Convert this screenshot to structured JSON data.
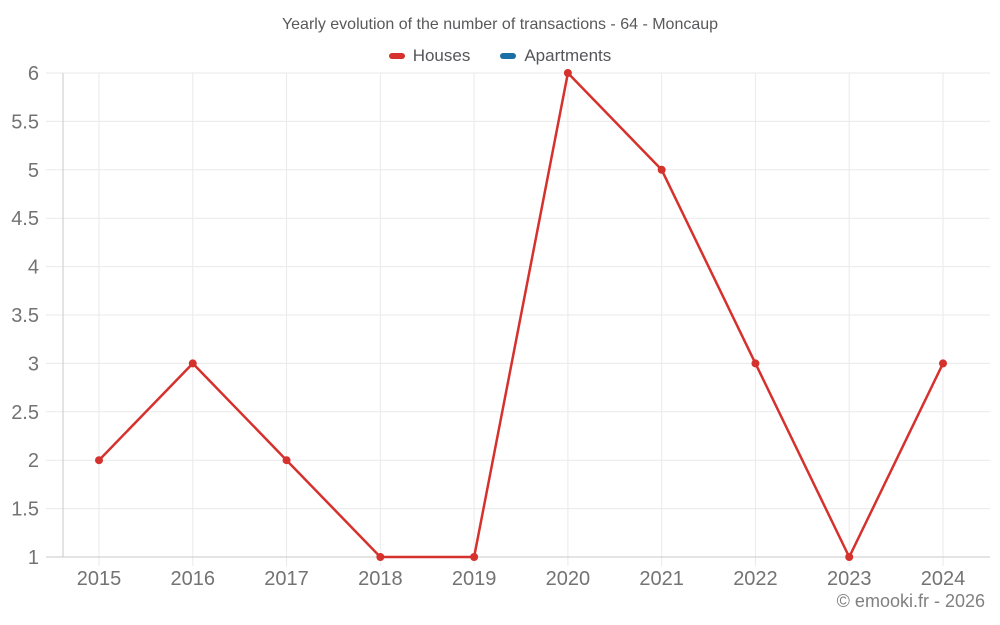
{
  "chart_data": {
    "type": "line",
    "title": "Yearly evolution of the number of transactions - 64 - Moncaup",
    "categories": [
      "2015",
      "2016",
      "2017",
      "2018",
      "2019",
      "2020",
      "2021",
      "2022",
      "2023",
      "2024"
    ],
    "series": [
      {
        "name": "Houses",
        "color": "#d5312d",
        "values": [
          2,
          3,
          2,
          1,
          1,
          6,
          5,
          3,
          1,
          3
        ]
      },
      {
        "name": "Apartments",
        "color": "#1a6fa4",
        "values": []
      }
    ],
    "xlabel": "",
    "ylabel": "",
    "ylim": [
      1,
      6
    ],
    "yticks": [
      1,
      1.5,
      2,
      2.5,
      3,
      3.5,
      4,
      4.5,
      5,
      5.5,
      6
    ],
    "grid": true,
    "legend_position": "top",
    "colors": {
      "grid": "#eaeaea",
      "axis": "#c9c9c9",
      "tick_labels": "#737373"
    }
  },
  "footer": {
    "watermark": "© emooki.fr - 2026"
  }
}
